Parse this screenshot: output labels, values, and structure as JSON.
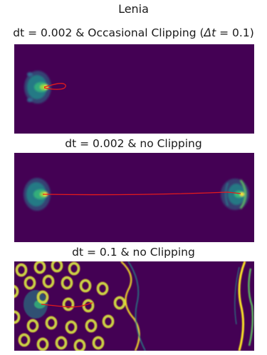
{
  "figure": {
    "title": "Lenia"
  },
  "panels": [
    {
      "title_prefix": "dt = 0.002 & Occasional Clipping (",
      "title_math": "Δt",
      "title_suffix": " = 0.1)"
    },
    {
      "title": "dt = 0.002 & no Clipping"
    },
    {
      "title": "dt = 0.1 & no Clipping"
    }
  ],
  "colors": {
    "background": "#440154",
    "trajectory": "#e41a1c",
    "colormap": "viridis"
  }
}
